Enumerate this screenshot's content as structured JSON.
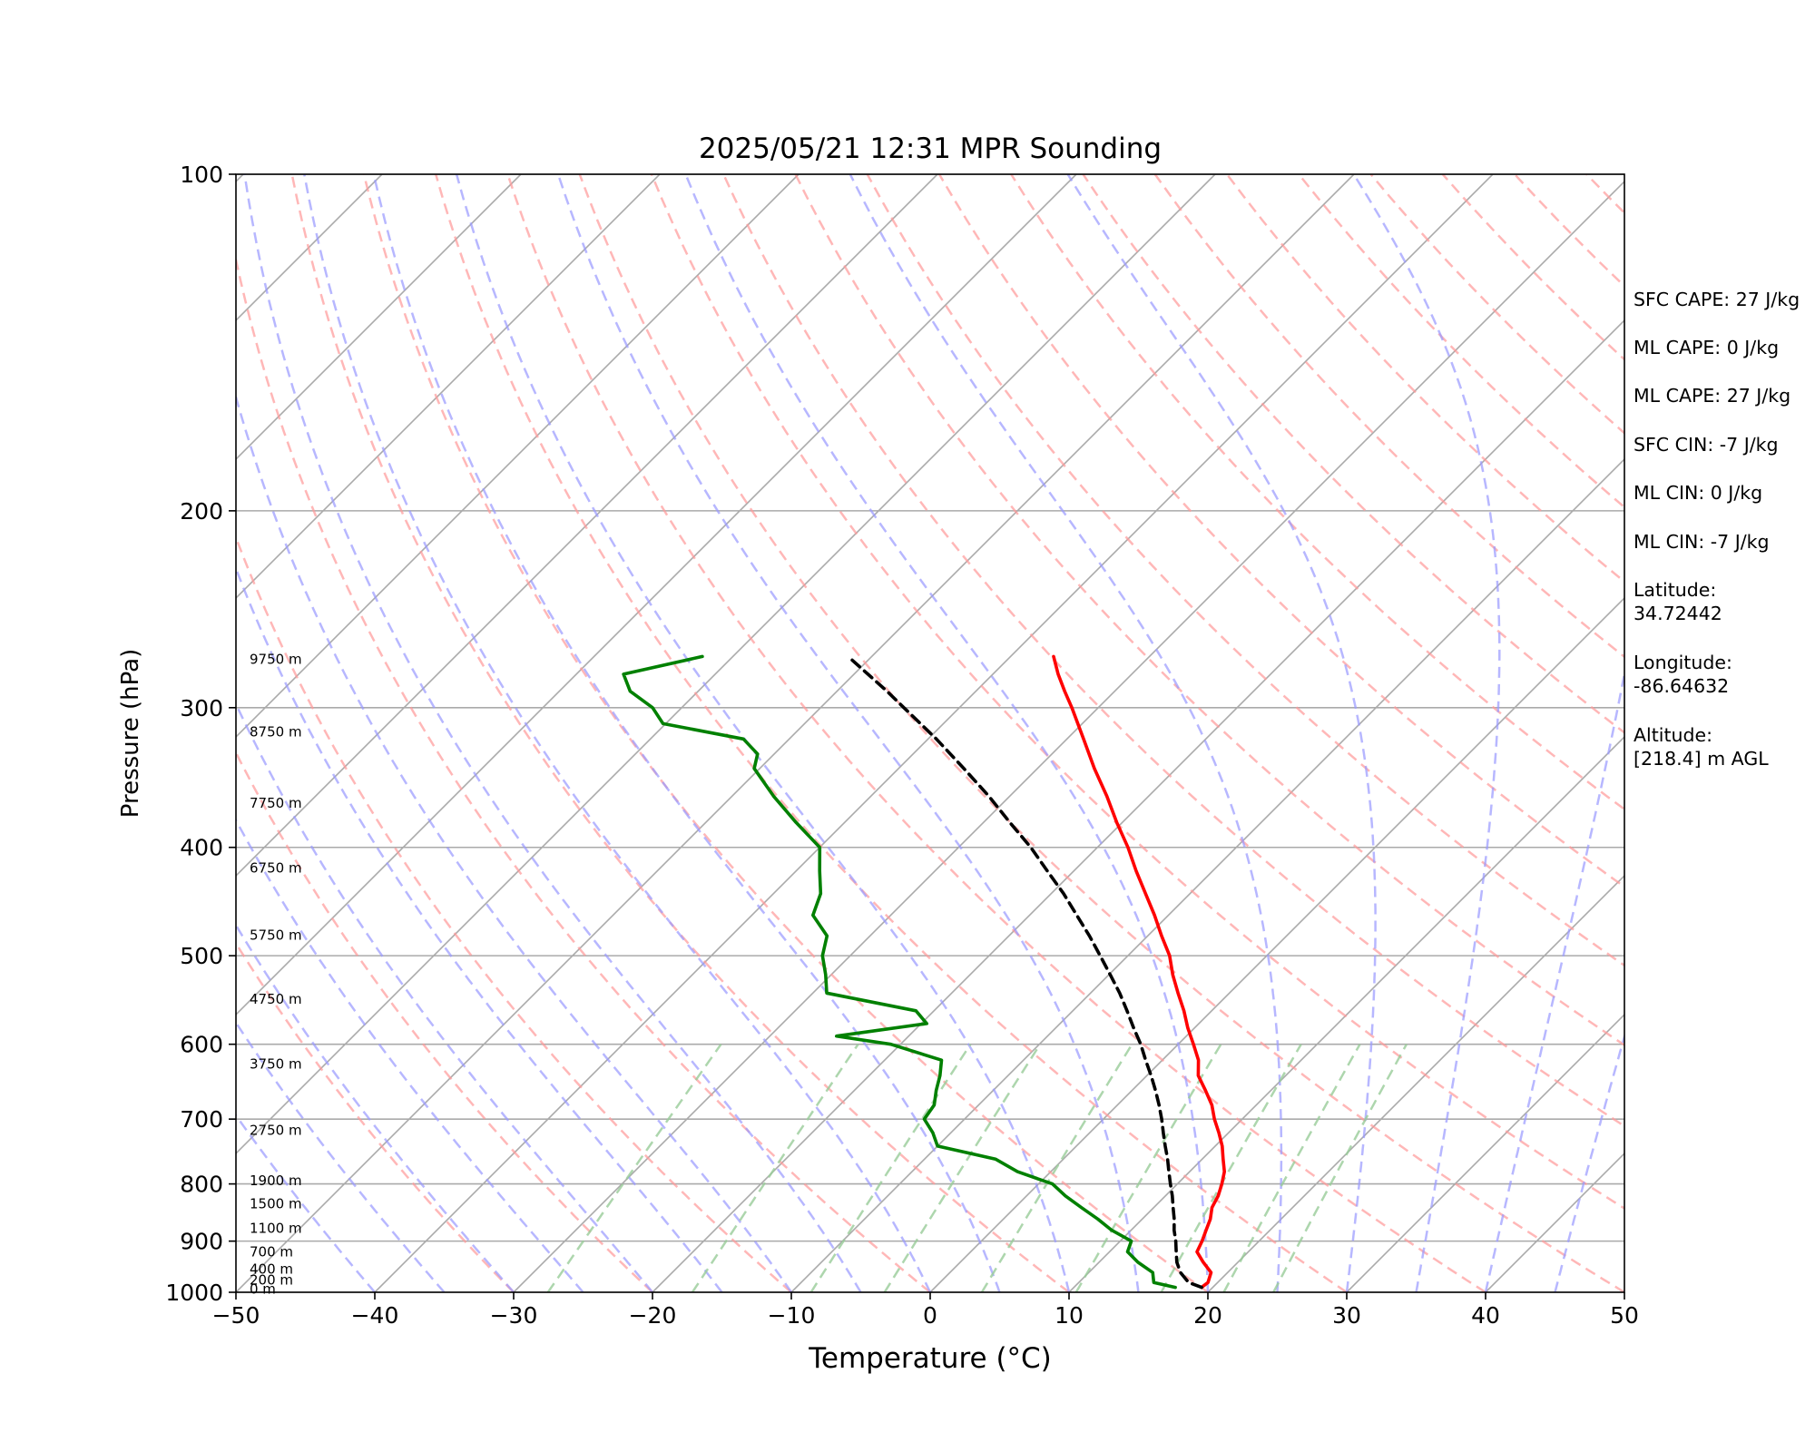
{
  "chart_data": {
    "type": "line",
    "title": "2025/05/21 12:31 MPR Sounding",
    "xlabel": "Temperature (°C)",
    "ylabel": "Pressure (hPa)",
    "xlim": [
      -50,
      50
    ],
    "ylim": [
      1000,
      100
    ],
    "y_scale": "log",
    "x_ticks": [
      "−50",
      "−40",
      "−30",
      "−20",
      "−10",
      "0",
      "10",
      "20",
      "30",
      "40",
      "50"
    ],
    "x_tick_values": [
      -50,
      -40,
      -30,
      -20,
      -10,
      0,
      10,
      20,
      30,
      40,
      50
    ],
    "y_ticks": [
      "100",
      "200",
      "300",
      "400",
      "500",
      "600",
      "700",
      "800",
      "900",
      "1000"
    ],
    "y_tick_values": [
      100,
      200,
      300,
      400,
      500,
      600,
      700,
      800,
      900,
      1000
    ],
    "grid": true,
    "colors": {
      "temperature": "#ff0000",
      "dewpoint": "#008000",
      "parcel": "#000000",
      "dry_adiabats": "#ff9999",
      "moist_adiabats": "#9999ff",
      "mixing_ratio": "#99cc99",
      "isotherms": "#aaaaaa"
    },
    "series": [
      {
        "key": "temperature",
        "pressure": [
          990,
          980,
          960,
          940,
          920,
          900,
          880,
          860,
          840,
          820,
          800,
          780,
          760,
          740,
          720,
          700,
          680,
          660,
          640,
          620,
          600,
          580,
          560,
          540,
          520,
          500,
          480,
          460,
          440,
          420,
          400,
          380,
          360,
          340,
          320,
          300,
          290,
          280,
          270
        ],
        "temp": [
          19.2,
          19.3,
          18.8,
          17.5,
          16.3,
          15.9,
          15.4,
          14.9,
          14.2,
          13.8,
          13.2,
          12.5,
          11.5,
          10.5,
          9.3,
          8.0,
          6.8,
          5.3,
          3.7,
          2.6,
          1.1,
          -0.5,
          -2.0,
          -3.7,
          -5.4,
          -7.0,
          -9.0,
          -11.0,
          -13.2,
          -15.5,
          -17.8,
          -20.4,
          -23.0,
          -25.9,
          -28.8,
          -31.9,
          -33.6,
          -35.3,
          -36.9
        ]
      },
      {
        "key": "dewpoint",
        "pressure": [
          990,
          980,
          960,
          940,
          920,
          900,
          880,
          860,
          840,
          820,
          800,
          780,
          760,
          740,
          720,
          700,
          680,
          660,
          640,
          620,
          600,
          590,
          575,
          560,
          540,
          520,
          500,
          480,
          460,
          440,
          420,
          400,
          380,
          360,
          340,
          330,
          320,
          310,
          300,
          290,
          280,
          270
        ],
        "temp": [
          17.3,
          15.4,
          14.6,
          12.8,
          11.3,
          10.8,
          8.6,
          6.8,
          4.8,
          2.8,
          1.0,
          -2.4,
          -4.9,
          -10.0,
          -11.3,
          -12.9,
          -13.2,
          -14.1,
          -14.9,
          -15.9,
          -20.7,
          -25.2,
          -19.6,
          -21.3,
          -29.0,
          -30.4,
          -32.0,
          -33.1,
          -35.6,
          -36.6,
          -38.3,
          -40.0,
          -43.5,
          -47.0,
          -50.4,
          -51.2,
          -53.3,
          -60.2,
          -62.1,
          -64.9,
          -66.6,
          -62.2
        ]
      },
      {
        "key": "parcel",
        "pressure": [
          990,
          980,
          960,
          940,
          920,
          900,
          880,
          860,
          840,
          820,
          800,
          780,
          760,
          740,
          720,
          700,
          680,
          660,
          640,
          620,
          600,
          580,
          560,
          540,
          520,
          500,
          480,
          460,
          440,
          420,
          400,
          380,
          360,
          340,
          320,
          300,
          290,
          280,
          270
        ],
        "temp": [
          19.2,
          17.9,
          16.6,
          15.6,
          14.8,
          14.0,
          13.1,
          12.3,
          11.4,
          10.5,
          9.5,
          8.5,
          7.5,
          6.4,
          5.3,
          4.2,
          3.0,
          1.7,
          0.3,
          -1.2,
          -2.7,
          -4.4,
          -6.1,
          -7.9,
          -9.9,
          -12.0,
          -14.2,
          -16.6,
          -19.1,
          -21.9,
          -24.8,
          -28.1,
          -31.5,
          -35.3,
          -39.4,
          -44.0,
          -46.4,
          -49.0,
          -51.7
        ]
      }
    ],
    "height_labels": [
      {
        "p": 995,
        "label": "0 m"
      },
      {
        "p": 977,
        "label": "200 m"
      },
      {
        "p": 955,
        "label": "400 m"
      },
      {
        "p": 922,
        "label": "700 m"
      },
      {
        "p": 878,
        "label": "1100 m"
      },
      {
        "p": 835,
        "label": "1500 m"
      },
      {
        "p": 796,
        "label": "1900 m"
      },
      {
        "p": 718,
        "label": "2750 m"
      },
      {
        "p": 626,
        "label": "3750 m"
      },
      {
        "p": 548,
        "label": "4750 m"
      },
      {
        "p": 480,
        "label": "5750 m"
      },
      {
        "p": 418,
        "label": "6750 m"
      },
      {
        "p": 366,
        "label": "7750 m"
      },
      {
        "p": 316,
        "label": "8750 m"
      },
      {
        "p": 272,
        "label": "9750 m"
      }
    ]
  },
  "info": {
    "sfc_cape": "SFC CAPE: 27 J/kg",
    "ml_cape_0": "ML CAPE: 0 J/kg",
    "ml_cape_27": "ML CAPE: 27 J/kg",
    "sfc_cin": "SFC CIN: -7 J/kg",
    "ml_cin_0": "ML CIN: 0 J/kg",
    "ml_cin_7": "ML CIN: -7 J/kg",
    "latitude_label": "Latitude:",
    "latitude_value": "34.72442",
    "longitude_label": "Longitude:",
    "longitude_value": "-86.64632",
    "altitude_label": "Altitude:",
    "altitude_value": "[218.4] m AGL"
  }
}
